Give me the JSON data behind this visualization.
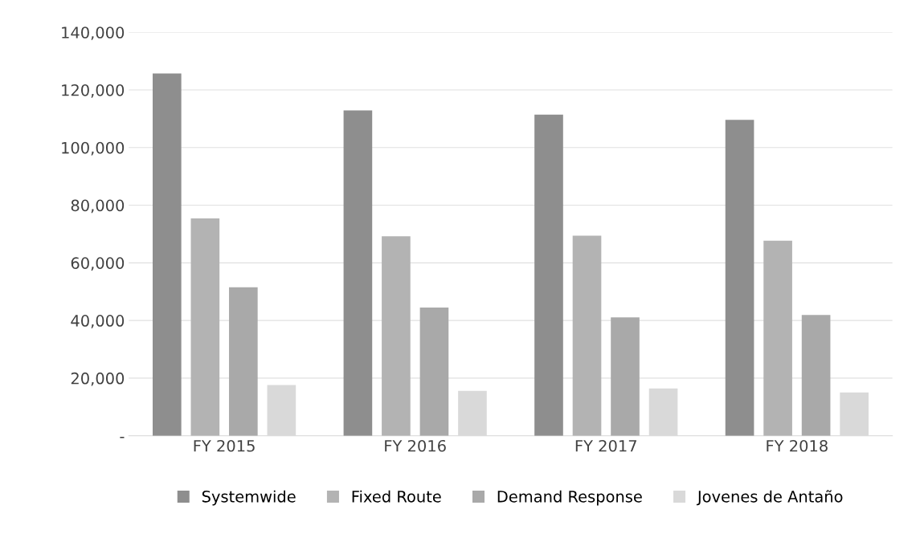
{
  "chart_data": {
    "type": "bar",
    "categories": [
      "FY 2015",
      "FY 2016",
      "FY 2017",
      "FY 2018"
    ],
    "series": [
      {
        "name": "Systemwide",
        "color": "#8e8e8e",
        "values": [
          125700,
          112900,
          111400,
          109600
        ]
      },
      {
        "name": "Fixed Route",
        "color": "#b3b3b3",
        "values": [
          75400,
          69200,
          69400,
          67700
        ]
      },
      {
        "name": "Demand Response",
        "color": "#a9a9a9",
        "values": [
          51500,
          44500,
          41100,
          41900
        ]
      },
      {
        "name": "Jovenes de Antaño",
        "color": "#d9d9d9",
        "values": [
          17600,
          15600,
          16400,
          15000
        ]
      }
    ],
    "ylim": [
      0,
      140000
    ],
    "yticks": [
      {
        "value": 0,
        "label": "-"
      },
      {
        "value": 20000,
        "label": "20,000"
      },
      {
        "value": 40000,
        "label": "40,000"
      },
      {
        "value": 60000,
        "label": "60,000"
      },
      {
        "value": 80000,
        "label": "80,000"
      },
      {
        "value": 100000,
        "label": "100,000"
      },
      {
        "value": 120000,
        "label": "120,000"
      },
      {
        "value": 140000,
        "label": "140,000"
      }
    ],
    "grid": "y",
    "legend": "bottom"
  }
}
